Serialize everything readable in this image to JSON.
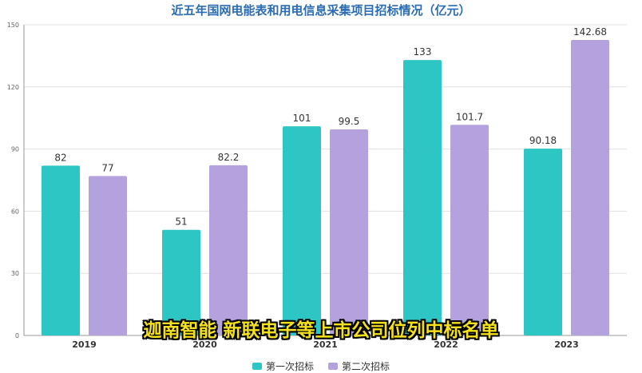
{
  "chart_data": {
    "type": "bar",
    "title": "近五年国网电能表和用电信息采集项目招标情况（亿元）",
    "categories": [
      "2019",
      "2020",
      "2021",
      "2022",
      "2023"
    ],
    "series": [
      {
        "name": "第一次招标",
        "color": "#2ec5c5",
        "values": [
          82,
          51,
          101,
          133,
          90.18
        ],
        "labels": [
          "82",
          "51",
          "101",
          "133",
          "90.18"
        ]
      },
      {
        "name": "第二次招标",
        "color": "#b3a2de",
        "values": [
          77,
          82.2,
          99.5,
          101.7,
          142.68
        ],
        "labels": [
          "77",
          "82.2",
          "99.5",
          "101.7",
          "142.68"
        ]
      }
    ],
    "yticks": [
      "0",
      "30",
      "60",
      "90",
      "120",
      "150"
    ],
    "ylim": [
      0,
      150
    ],
    "grid": true,
    "legend_position": "bottom"
  },
  "caption": "迦南智能 新联电子等上市公司位列中标名单",
  "colors": {
    "title": "#2b6cb3",
    "caption": "#f4e11d"
  }
}
